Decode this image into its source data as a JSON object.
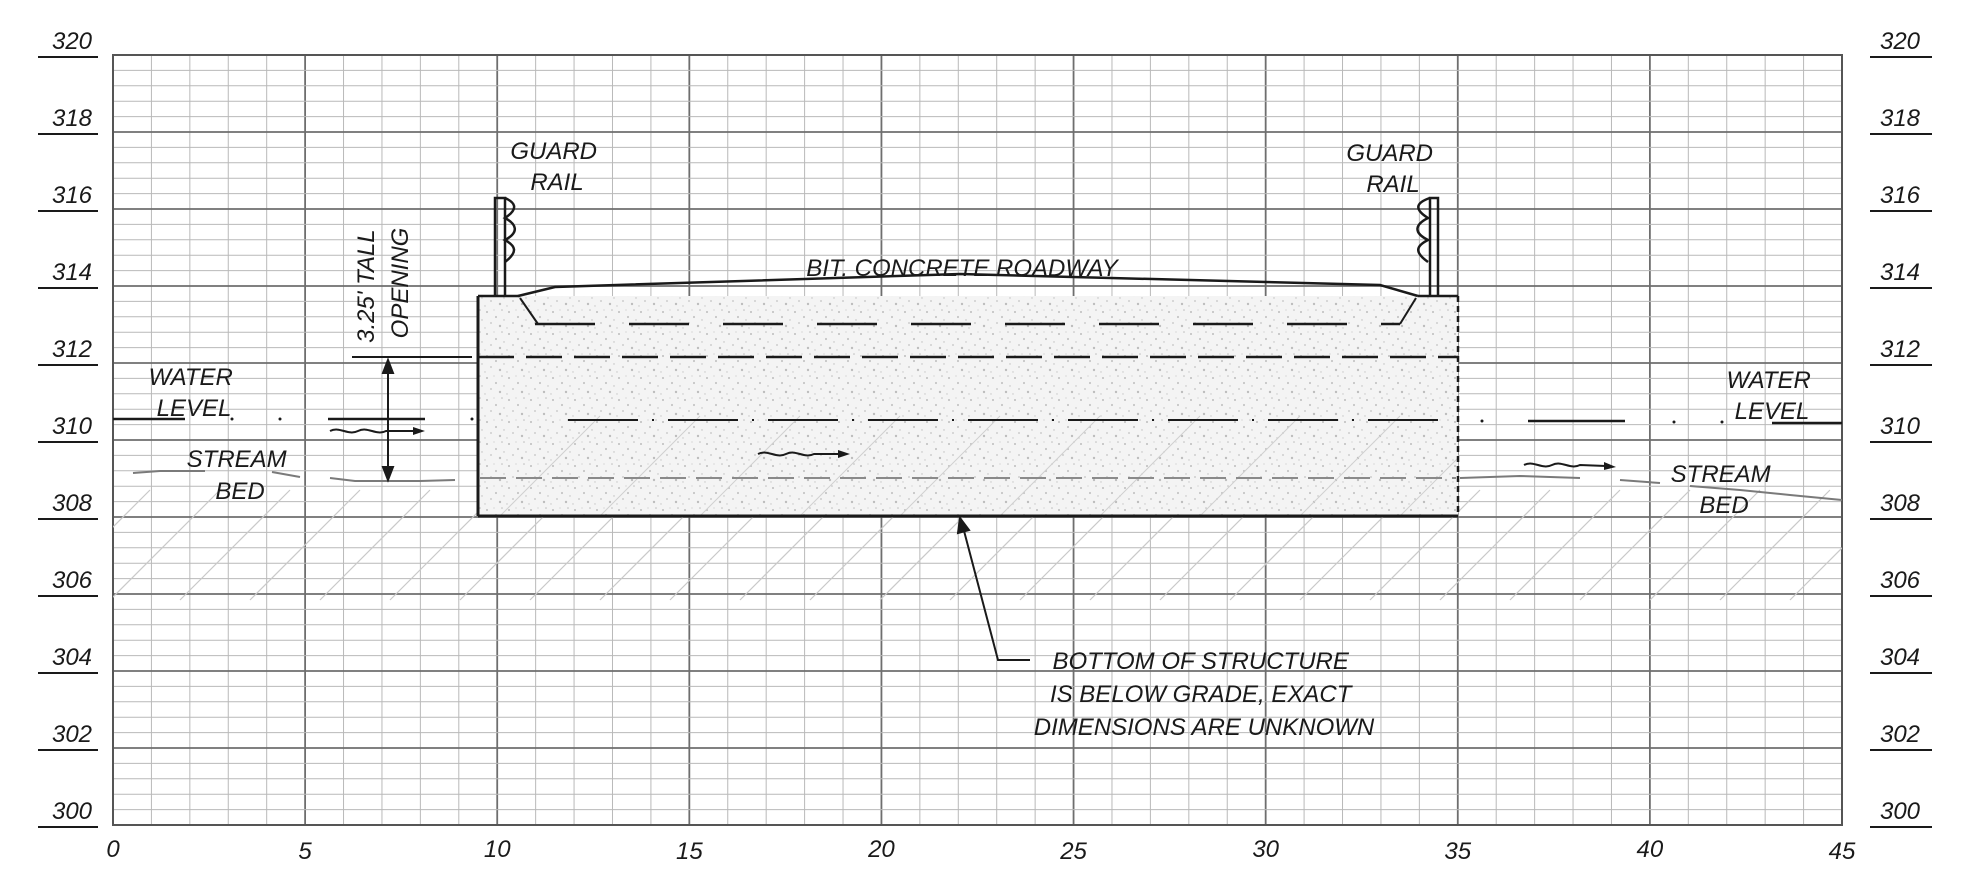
{
  "x_axis": {
    "min": 0,
    "max": 45,
    "labels": [
      "0",
      "5",
      "10",
      "15",
      "20",
      "25",
      "30",
      "35",
      "40",
      "45"
    ]
  },
  "y_axis": {
    "min": 300,
    "max": 320,
    "labels": [
      "300",
      "302",
      "304",
      "306",
      "308",
      "310",
      "312",
      "314",
      "316",
      "318",
      "320"
    ]
  },
  "annotations": {
    "guard_rail_left": [
      "GUARD",
      "RAIL"
    ],
    "guard_rail_right": [
      "GUARD",
      "RAIL"
    ],
    "roadway": "BIT. CONCRETE ROADWAY",
    "opening": [
      "3.25' TALL",
      "OPENING"
    ],
    "water_level_left": [
      "WATER",
      "LEVEL"
    ],
    "water_level_right": [
      "WATER",
      "LEVEL"
    ],
    "stream_bed_left": [
      "STREAM",
      "BED"
    ],
    "stream_bed_right": [
      "STREAM",
      "BED"
    ],
    "bottom_note": [
      "BOTTOM OF STRUCTURE",
      "IS BELOW GRADE, EXACT",
      "DIMENSIONS ARE UNKNOWN"
    ]
  },
  "profile": {
    "structure": {
      "x_start": 9.4,
      "x_end": 35,
      "top_elev": 313.4,
      "bottom_elev": 307.5
    },
    "water_level_elev": 310,
    "stream_bed_elev": 308.6,
    "opening_height_ft": 3.25,
    "guard_rail_x": [
      10.1,
      34.2
    ],
    "guard_rail_top_elev": 315.8
  },
  "colors": {
    "grid_minor": "#b9b9b9",
    "grid_major": "#6e6e6e",
    "ink": "#1a1a1a",
    "fill": "#f4f4f4",
    "speckle": "#bdbdbd"
  }
}
